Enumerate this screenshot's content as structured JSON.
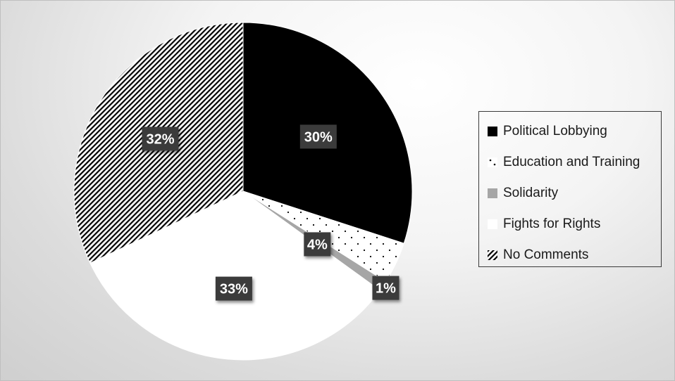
{
  "chart_data": {
    "type": "pie",
    "title": "",
    "slices": [
      {
        "label": "Political Lobbying",
        "value": 30,
        "display": "30%",
        "fill": "#000000",
        "pattern": "solid"
      },
      {
        "label": "Education and Training",
        "value": 4,
        "display": "4%",
        "fill": "#ffffff",
        "pattern": "dots"
      },
      {
        "label": "Solidarity",
        "value": 1,
        "display": "1%",
        "fill": "#a6a6a6",
        "pattern": "solid"
      },
      {
        "label": "Fights for Rights",
        "value": 33,
        "display": "33%",
        "fill": "#ffffff",
        "pattern": "solid"
      },
      {
        "label": "No Comments",
        "value": 32,
        "display": "32%",
        "fill": "#ffffff",
        "pattern": "hatch"
      }
    ],
    "legend_position": "right",
    "data_label_style": {
      "background": "#3a3a3a",
      "color": "#ffffff"
    }
  }
}
